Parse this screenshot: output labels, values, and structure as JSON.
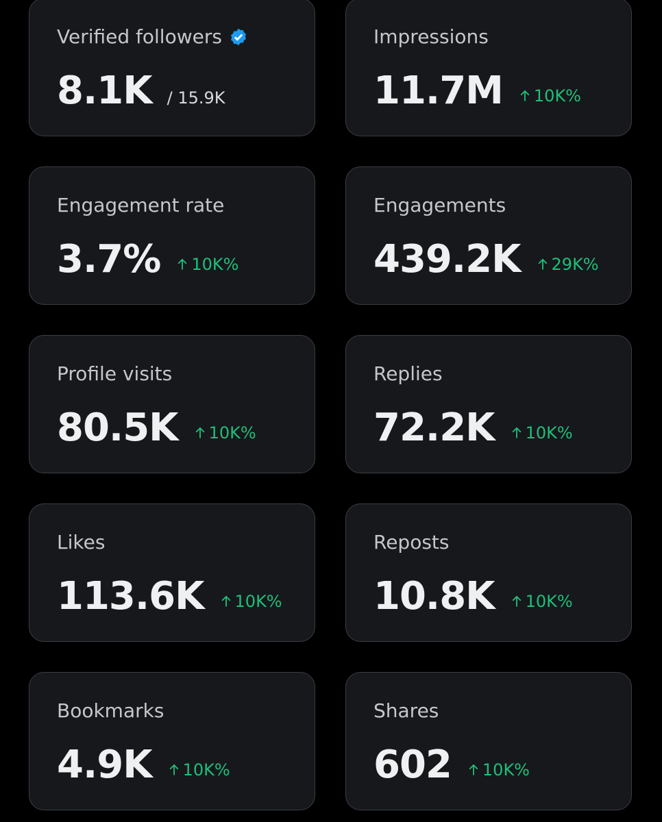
{
  "cards": [
    {
      "label": "Verified followers",
      "value": "8.1K",
      "total": "/ 15.9K"
    },
    {
      "label": "Impressions",
      "value": "11.7M",
      "change": "10K%"
    },
    {
      "label": "Engagement rate",
      "value": "3.7%",
      "change": "10K%"
    },
    {
      "label": "Engagements",
      "value": "439.2K",
      "change": "29K%"
    },
    {
      "label": "Profile visits",
      "value": "80.5K",
      "change": "10K%"
    },
    {
      "label": "Replies",
      "value": "72.2K",
      "change": "10K%"
    },
    {
      "label": "Likes",
      "value": "113.6K",
      "change": "10K%"
    },
    {
      "label": "Reposts",
      "value": "10.8K",
      "change": "10K%"
    },
    {
      "label": "Bookmarks",
      "value": "4.9K",
      "change": "10K%"
    },
    {
      "label": "Shares",
      "value": "602",
      "change": "10K%"
    }
  ]
}
